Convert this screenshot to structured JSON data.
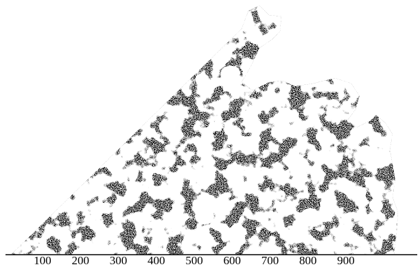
{
  "figure": {
    "ink_color": "#000000",
    "paper_color": "#ffffff",
    "pattern": "speckled fractal growth cluster",
    "axis": {
      "tick_labels": [
        "100",
        "200",
        "300",
        "400",
        "500",
        "600",
        "700",
        "800",
        "900"
      ],
      "tick_values": [
        100,
        200,
        300,
        400,
        500,
        600,
        700,
        800,
        900
      ]
    }
  }
}
